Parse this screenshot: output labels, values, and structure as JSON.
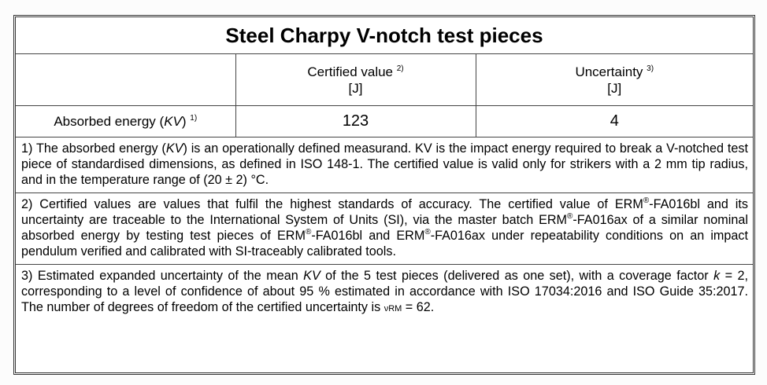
{
  "title": "Steel Charpy V-notch test pieces",
  "header": {
    "col1": "Certified value",
    "col1_sup": "2)",
    "col1_unit": "[J]",
    "col2": "Uncertainty",
    "col2_sup": "3)",
    "col2_unit": "[J]"
  },
  "row": {
    "label": "Absorbed energy (",
    "label_italic": "KV",
    "label_end": ")",
    "label_sup": "1)",
    "certified": "123",
    "uncertainty": "4"
  },
  "notes": [
    [
      {
        "t": "1) The absorbed energy ("
      },
      {
        "t": "KV",
        "i": 1
      },
      {
        "t": ") is an operationally defined measurand. KV is the impact energy required to break a V-notched test piece of standardised dimensions, as defined in ISO 148-1. The certified value is valid only for strikers with a 2 mm tip radius, and in the temperature range of (20 ± 2) °C."
      }
    ],
    [
      {
        "t": "2) Certified values are values that fulfil the highest standards of accuracy. The certified value of ERM"
      },
      {
        "t": "®",
        "s": 1
      },
      {
        "t": "-FA016bl and its uncertainty are traceable to the International System of Units (SI), via the master batch ERM"
      },
      {
        "t": "®",
        "s": 1
      },
      {
        "t": "-FA016ax of a similar nominal absorbed energy by testing test pieces of ERM"
      },
      {
        "t": "®",
        "s": 1
      },
      {
        "t": "-FA016bl and ERM"
      },
      {
        "t": "®",
        "s": 1
      },
      {
        "t": "-FA016ax under repeatability conditions on an impact pendulum verified and calibrated with SI-traceably calibrated tools."
      }
    ],
    [
      {
        "t": "3) Estimated expanded uncertainty of the mean "
      },
      {
        "t": "KV",
        "i": 1
      },
      {
        "t": " of the 5 test pieces (delivered as one set), with a coverage factor "
      },
      {
        "t": "k",
        "i": 1
      },
      {
        "t": " = 2, corresponding to a level of confidence of about 95 % estimated in accordance with ISO 17034:2016 and ISO Guide 35:2017. The number of degrees of freedom of the certified uncertainty is "
      },
      {
        "t": "νRM",
        "b": 1
      },
      {
        "t": " = 62."
      }
    ]
  ]
}
